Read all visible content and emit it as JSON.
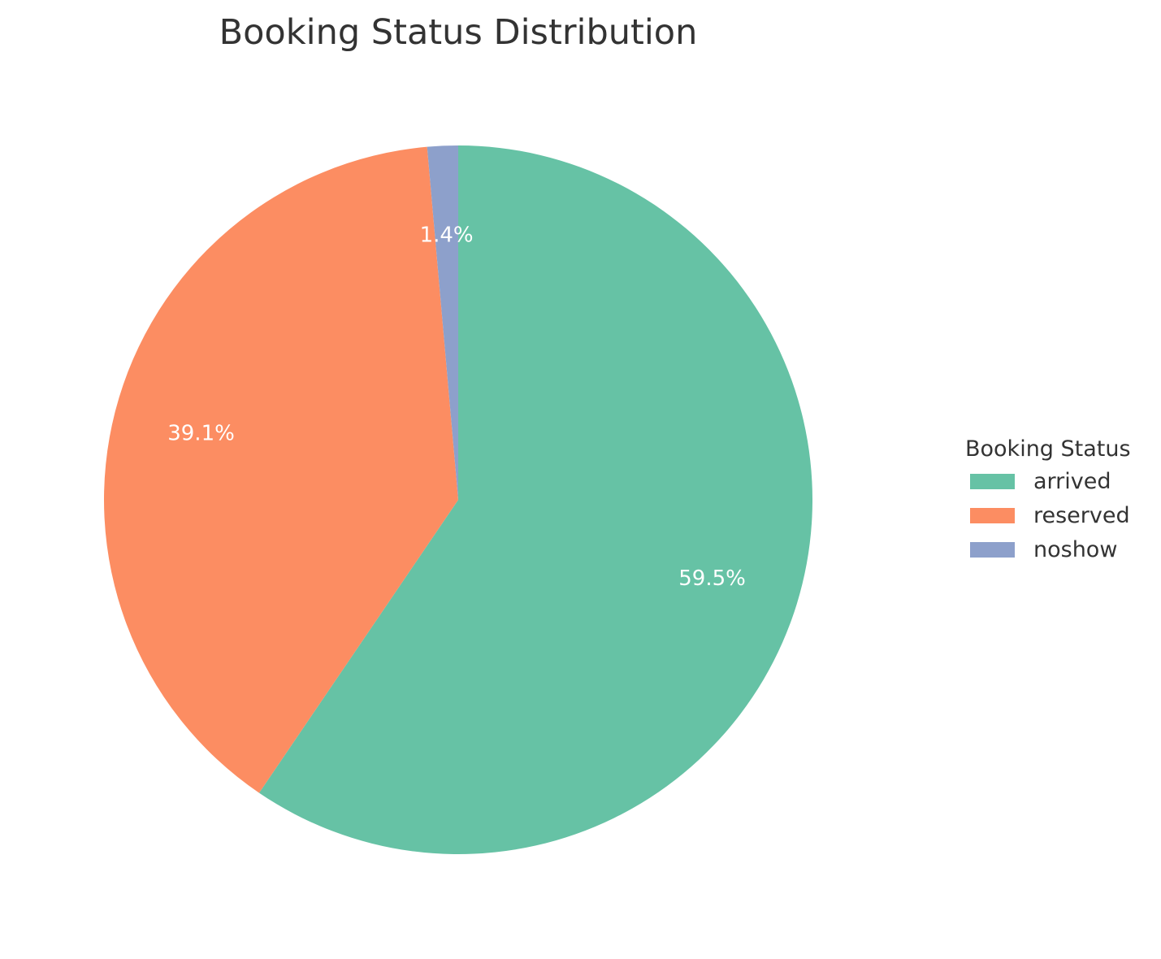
{
  "chart_data": {
    "type": "pie",
    "title": "Booking Status Distribution",
    "legend_title": "Booking Status",
    "legend_position": "right",
    "start": "top, clockwise",
    "slices": [
      {
        "label": "arrived",
        "value": 59.5,
        "display": "59.5%",
        "color": "#66c2a5"
      },
      {
        "label": "reserved",
        "value": 39.1,
        "display": "39.1%",
        "color": "#fc8d62"
      },
      {
        "label": "noshow",
        "value": 1.4,
        "display": "1.4%",
        "color": "#8da0cb"
      }
    ]
  }
}
